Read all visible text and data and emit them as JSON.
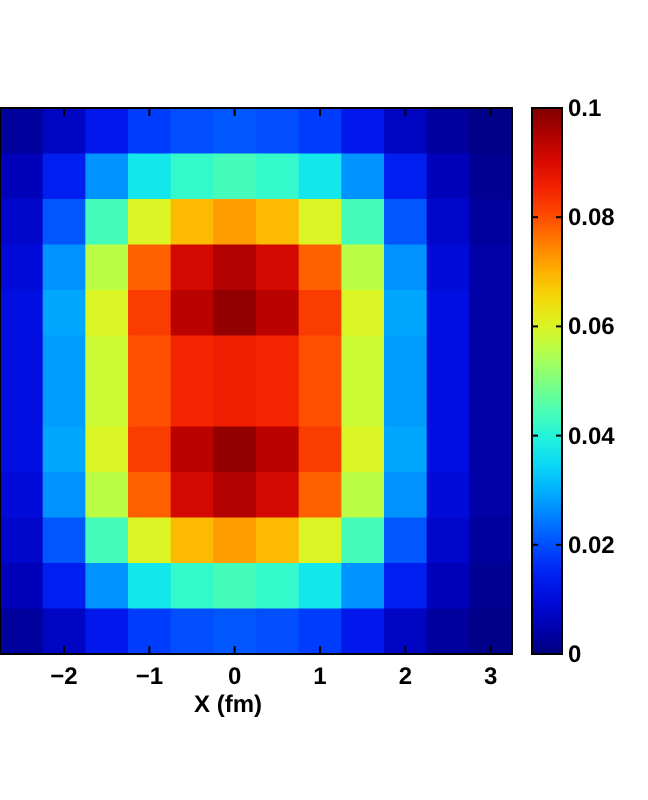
{
  "chart_data": {
    "type": "heatmap",
    "xlabel": "X (fm)",
    "categories": [
      null,
      "−2",
      null,
      "−1",
      null,
      "0",
      null,
      "1",
      null,
      "2",
      null,
      "3"
    ],
    "y_categories": [
      null,
      null,
      null,
      null,
      null,
      null,
      null,
      null,
      null,
      null,
      null,
      null
    ],
    "tick_labels": "x",
    "clim": [
      0,
      0.1
    ],
    "cticks": [
      0,
      0.02,
      0.04,
      0.06,
      0.08,
      0.1
    ],
    "cells": [
      [
        0.003,
        0.007,
        0.013,
        0.018,
        0.02,
        0.021,
        0.02,
        0.018,
        0.013,
        0.007,
        0.003,
        0.001
      ],
      [
        0.006,
        0.014,
        0.027,
        0.037,
        0.042,
        0.044,
        0.042,
        0.037,
        0.027,
        0.014,
        0.006,
        0.002
      ],
      [
        0.008,
        0.021,
        0.044,
        0.06,
        0.069,
        0.072,
        0.069,
        0.06,
        0.044,
        0.021,
        0.008,
        0.003
      ],
      [
        0.01,
        0.027,
        0.056,
        0.078,
        0.091,
        0.095,
        0.091,
        0.078,
        0.056,
        0.027,
        0.01,
        0.004
      ],
      [
        0.011,
        0.029,
        0.06,
        0.082,
        0.094,
        0.098,
        0.094,
        0.082,
        0.06,
        0.029,
        0.011,
        0.004
      ],
      [
        0.011,
        0.028,
        0.058,
        0.08,
        0.085,
        0.086,
        0.085,
        0.08,
        0.058,
        0.028,
        0.011,
        0.004
      ],
      [
        0.011,
        0.028,
        0.058,
        0.08,
        0.085,
        0.086,
        0.085,
        0.08,
        0.058,
        0.028,
        0.011,
        0.004
      ],
      [
        0.011,
        0.029,
        0.06,
        0.082,
        0.094,
        0.098,
        0.094,
        0.082,
        0.06,
        0.029,
        0.011,
        0.004
      ],
      [
        0.01,
        0.027,
        0.056,
        0.078,
        0.091,
        0.095,
        0.091,
        0.078,
        0.056,
        0.027,
        0.01,
        0.004
      ],
      [
        0.008,
        0.021,
        0.044,
        0.06,
        0.069,
        0.072,
        0.069,
        0.06,
        0.044,
        0.021,
        0.008,
        0.003
      ],
      [
        0.006,
        0.014,
        0.027,
        0.037,
        0.042,
        0.044,
        0.042,
        0.037,
        0.027,
        0.014,
        0.006,
        0.002
      ],
      [
        0.003,
        0.007,
        0.013,
        0.018,
        0.02,
        0.021,
        0.02,
        0.018,
        0.013,
        0.007,
        0.003,
        0.001
      ]
    ]
  }
}
